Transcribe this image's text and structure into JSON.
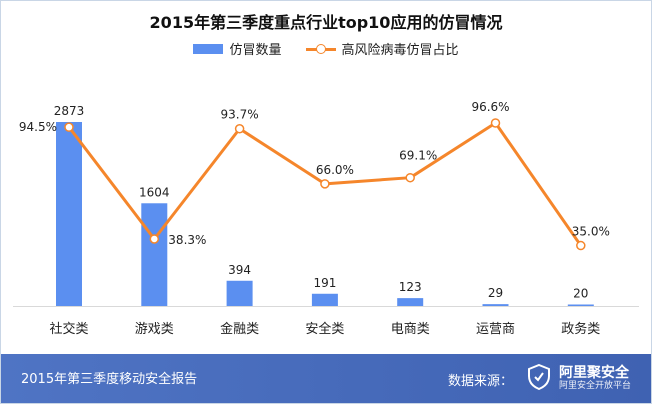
{
  "title": "2015年第三季度重点行业top10应用的仿冒情况",
  "legend": {
    "bar_label": "仿冒数量",
    "line_label": "高风险病毒仿冒占比"
  },
  "footer": {
    "report": "2015年第三季度移动安全报告",
    "source_label": "数据来源：",
    "brand_name": "阿里聚安全",
    "brand_sub": "阿里安全开放平台"
  },
  "colors": {
    "bar": "#5b8ff0",
    "line": "#f5862b",
    "footer": "#4a6fc0"
  },
  "chart_data": {
    "type": "bar",
    "title": "2015年第三季度重点行业top10应用的仿冒情况",
    "categories": [
      "社交类",
      "游戏类",
      "金融类",
      "安全类",
      "电商类",
      "运营商",
      "政务类"
    ],
    "series": [
      {
        "name": "仿冒数量",
        "type": "bar",
        "values": [
          2873,
          1604,
          394,
          191,
          123,
          29,
          20
        ],
        "labels": [
          "2873",
          "1604",
          "394",
          "191",
          "123",
          "29",
          "20"
        ]
      },
      {
        "name": "高风险病毒仿冒占比",
        "type": "line",
        "values": [
          94.5,
          38.3,
          93.7,
          66.0,
          69.1,
          96.6,
          35.0
        ],
        "labels": [
          "94.5%",
          "38.3%",
          "93.7%",
          "66.0%",
          "69.1%",
          "96.6%",
          "35.0%"
        ]
      }
    ],
    "legend_position": "top",
    "grid": false
  }
}
